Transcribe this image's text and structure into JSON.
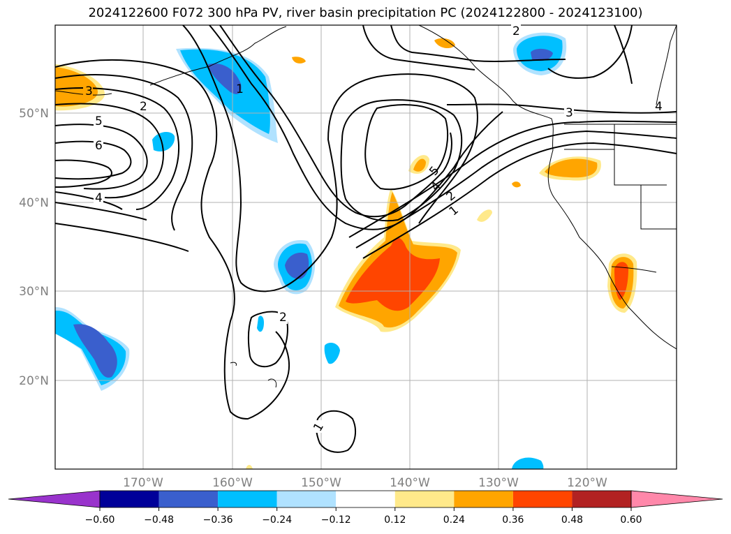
{
  "title": "2024122600 F072 300 hPa PV, river basin precipitation PC (2024122800 - 2024123100)",
  "lon_ticks": [
    "170°W",
    "160°W",
    "150°W",
    "140°W",
    "130°W",
    "120°W"
  ],
  "lat_ticks": [
    "50°N",
    "40°N",
    "30°N",
    "20°N"
  ],
  "contour_labels": [
    {
      "id": "cl-3-west",
      "text": "3"
    },
    {
      "id": "cl-2-west",
      "text": "2"
    },
    {
      "id": "cl-5-west",
      "text": "5"
    },
    {
      "id": "cl-6-west",
      "text": "6"
    },
    {
      "id": "cl-4-west",
      "text": "4"
    },
    {
      "id": "cl-1-alaska",
      "text": "1"
    },
    {
      "id": "cl-2-gulf",
      "text": "2"
    },
    {
      "id": "cl-3-coast",
      "text": "3"
    },
    {
      "id": "cl-5-trough",
      "text": "5"
    },
    {
      "id": "cl-4-trough",
      "text": "4"
    },
    {
      "id": "cl-2-trough",
      "text": "2"
    },
    {
      "id": "cl-1-trough",
      "text": "1"
    },
    {
      "id": "cl-2-hawaii",
      "text": "2"
    },
    {
      "id": "cl-1-south",
      "text": "1"
    },
    {
      "id": "cl-4-east",
      "text": "4"
    }
  ],
  "colorbar": {
    "colors": [
      "#9933cc",
      "#000099",
      "#3a5fcd",
      "#00bfff",
      "#b0e2ff",
      "#ffffff",
      "#ffe98a",
      "#ffa500",
      "#ff4500",
      "#b22222",
      "#ff88aa"
    ],
    "labels": [
      "−0.60",
      "−0.48",
      "−0.36",
      "−0.24",
      "−0.12",
      "0.12",
      "0.24",
      "0.36",
      "0.48",
      "0.60"
    ]
  }
}
